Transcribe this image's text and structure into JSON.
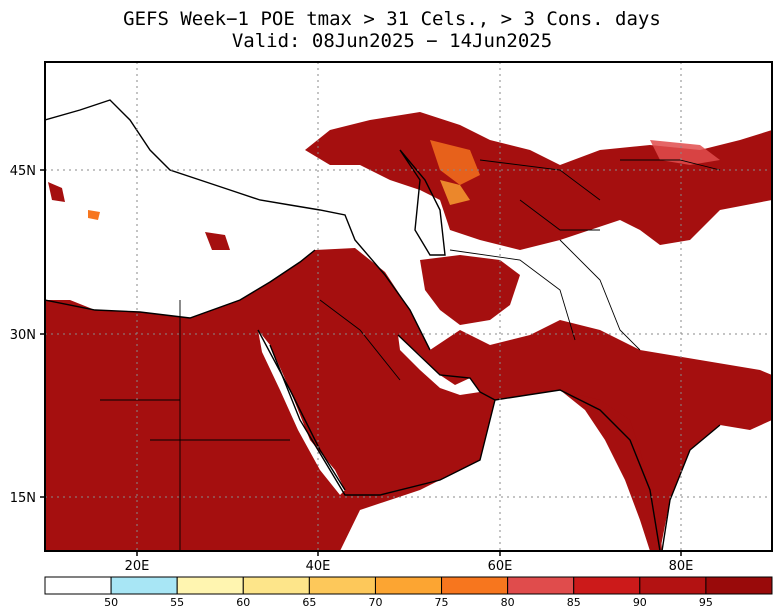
{
  "title": {
    "line1": "GEFS Week−1 POE tmax > 31 Cels., > 3 Cons. days",
    "line2": "Valid: 08Jun2025 − 14Jun2025"
  },
  "map": {
    "lon_range": [
      10,
      90
    ],
    "lat_range": [
      10,
      55
    ],
    "lat_ticks": [
      {
        "value": 15,
        "label": "15N"
      },
      {
        "value": 30,
        "label": "30N"
      },
      {
        "value": 45,
        "label": "45N"
      }
    ],
    "lon_ticks": [
      {
        "value": 20,
        "label": "20E"
      },
      {
        "value": 40,
        "label": "40E"
      },
      {
        "value": 60,
        "label": "60E"
      },
      {
        "value": 80,
        "label": "80E"
      }
    ],
    "grid": "dotted",
    "fill_color": "#a50f0f",
    "background": "#ffffff"
  },
  "colorbar": {
    "colors": [
      "#ffffff",
      "#a8e6f5",
      "#fff5b0",
      "#fde58a",
      "#fdc85a",
      "#fca532",
      "#f7761e",
      "#e04c4c",
      "#cc1a1a",
      "#b31212",
      "#990a0a"
    ],
    "labels": [
      "50",
      "55",
      "60",
      "65",
      "70",
      "75",
      "80",
      "85",
      "90",
      "95"
    ]
  }
}
